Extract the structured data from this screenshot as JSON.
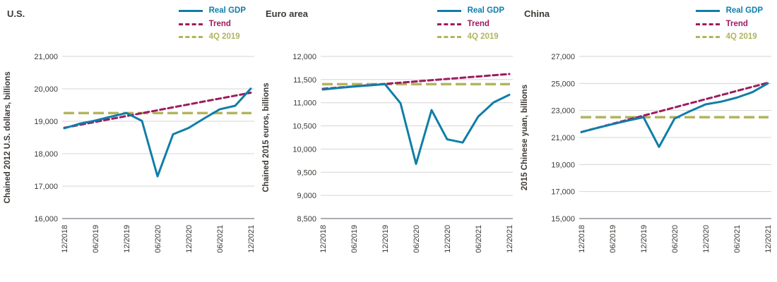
{
  "legend": {
    "items": [
      {
        "label": "Real GDP",
        "key": "real_gdp",
        "style": "solid",
        "color": "#0f7ea8"
      },
      {
        "label": "Trend",
        "key": "trend",
        "style": "dashed",
        "color": "#9e1b5f"
      },
      {
        "label": "4Q 2019",
        "key": "q4_2019",
        "style": "dashed",
        "color": "#b2b45e"
      }
    ]
  },
  "colors": {
    "real_gdp": "#0f7ea8",
    "trend": "#9e1b5f",
    "q4_2019": "#b2b45e",
    "grid": "#d4d4d4",
    "axis": "#8f8f98",
    "text": "#3d3935"
  },
  "chart_data": [
    {
      "type": "line",
      "title": "U.S.",
      "ylabel": "Chained 2012 U.S. dollars, billions",
      "ylim": [
        16000,
        21000
      ],
      "yticks": [
        16000,
        17000,
        18000,
        19000,
        20000,
        21000
      ],
      "x_tick_labels": [
        "12/2018",
        "06/2019",
        "12/2019",
        "06/2020",
        "12/2020",
        "06/2021",
        "12/2021"
      ],
      "x_quarters": [
        "12/2018",
        "03/2019",
        "06/2019",
        "09/2019",
        "12/2019",
        "03/2020",
        "06/2020",
        "09/2020",
        "12/2020",
        "03/2021",
        "06/2021",
        "09/2021",
        "12/2021"
      ],
      "series": [
        {
          "name": "Real GDP",
          "key": "real_gdp",
          "values": [
            18783,
            18927,
            19022,
            19141,
            19254,
            19011,
            17303,
            18597,
            18794,
            19088,
            19368,
            19479,
            20006
          ]
        },
        {
          "name": "Trend",
          "key": "trend",
          "values": [
            18800,
            18890,
            18980,
            19070,
            19160,
            19250,
            19340,
            19430,
            19520,
            19610,
            19700,
            19790,
            19880
          ]
        },
        {
          "name": "4Q 2019",
          "key": "q4_2019",
          "value": 19254
        }
      ]
    },
    {
      "type": "line",
      "title": "Euro area",
      "ylabel": "Chained 2015 euros, billions",
      "ylim": [
        8500,
        12000
      ],
      "yticks": [
        8500,
        9000,
        9500,
        10000,
        10500,
        11000,
        11500,
        12000
      ],
      "x_tick_labels": [
        "12/2018",
        "06/2019",
        "12/2019",
        "06/2020",
        "12/2020",
        "06/2021",
        "12/2021"
      ],
      "x_quarters": [
        "12/2018",
        "03/2019",
        "06/2019",
        "09/2019",
        "12/2019",
        "03/2020",
        "06/2020",
        "09/2020",
        "12/2020",
        "03/2021",
        "06/2021",
        "09/2021",
        "12/2021"
      ],
      "series": [
        {
          "name": "Real GDP",
          "key": "real_gdp",
          "values": [
            11285,
            11320,
            11350,
            11375,
            11400,
            10990,
            9680,
            10840,
            10210,
            10140,
            10700,
            11010,
            11170
          ]
        },
        {
          "name": "Trend",
          "key": "trend",
          "values": [
            11300,
            11327,
            11353,
            11380,
            11407,
            11433,
            11460,
            11487,
            11513,
            11540,
            11567,
            11593,
            11620
          ]
        },
        {
          "name": "4Q 2019",
          "key": "q4_2019",
          "value": 11400
        }
      ]
    },
    {
      "type": "line",
      "title": "China",
      "ylabel": "2015 Chinese yuan, billions",
      "ylim": [
        15000,
        27000
      ],
      "yticks": [
        15000,
        17000,
        19000,
        21000,
        23000,
        25000,
        27000
      ],
      "x_tick_labels": [
        "12/2018",
        "06/2019",
        "12/2019",
        "06/2020",
        "12/2020",
        "06/2021",
        "12/2021"
      ],
      "x_quarters": [
        "12/2018",
        "03/2019",
        "06/2019",
        "09/2019",
        "12/2019",
        "03/2020",
        "06/2020",
        "09/2020",
        "12/2020",
        "03/2021",
        "06/2021",
        "09/2021",
        "12/2021"
      ],
      "series": [
        {
          "name": "Real GDP",
          "key": "real_gdp",
          "values": [
            21400,
            21700,
            21980,
            22250,
            22500,
            20300,
            22400,
            22950,
            23450,
            23650,
            23950,
            24350,
            25000
          ]
        },
        {
          "name": "Trend",
          "key": "trend",
          "values": [
            21400,
            21704,
            22008,
            22313,
            22617,
            22921,
            23225,
            23529,
            23833,
            24138,
            24442,
            24746,
            25050
          ]
        },
        {
          "name": "4Q 2019",
          "key": "q4_2019",
          "value": 22500
        }
      ]
    }
  ]
}
